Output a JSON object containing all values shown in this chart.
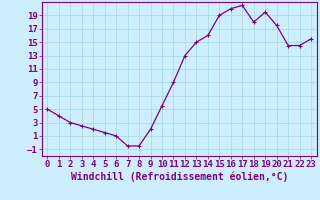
{
  "x": [
    0,
    1,
    2,
    3,
    4,
    5,
    6,
    7,
    8,
    9,
    10,
    11,
    12,
    13,
    14,
    15,
    16,
    17,
    18,
    19,
    20,
    21,
    22,
    23
  ],
  "y": [
    5,
    4,
    3,
    2.5,
    2,
    1.5,
    1,
    -0.5,
    -0.5,
    2,
    5.5,
    9,
    13,
    15,
    16,
    19,
    20,
    20.5,
    18,
    19.5,
    17.5,
    14.5,
    14.5,
    15.5
  ],
  "line_color": "#800080",
  "marker": "+",
  "bg_color": "#cceeff",
  "grid_color": "#aadddd",
  "xlabel": "Windchill (Refroidissement éolien,°C)",
  "xlabel_fontsize": 7,
  "tick_fontsize": 6.5,
  "ylim": [
    -2,
    21
  ],
  "xlim": [
    -0.5,
    23.5
  ],
  "yticks": [
    -1,
    1,
    3,
    5,
    7,
    9,
    11,
    13,
    15,
    17,
    19
  ],
  "xticks": [
    0,
    1,
    2,
    3,
    4,
    5,
    6,
    7,
    8,
    9,
    10,
    11,
    12,
    13,
    14,
    15,
    16,
    17,
    18,
    19,
    20,
    21,
    22,
    23
  ]
}
